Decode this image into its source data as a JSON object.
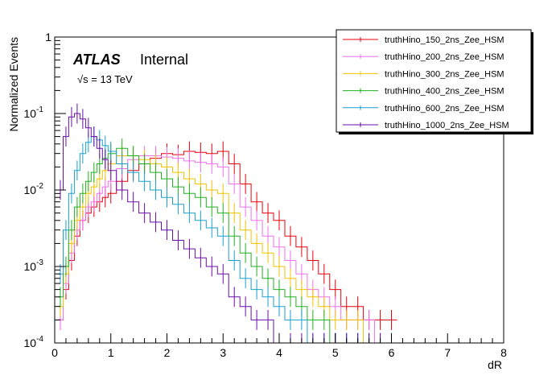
{
  "chart_data": {
    "type": "line",
    "style": "step histogram with error bars",
    "title": "",
    "xlabel": "dR",
    "ylabel": "Normalized Events",
    "xlim": [
      0,
      8
    ],
    "ylim": [
      0.0001,
      1
    ],
    "yscale": "log",
    "x_ticks": [
      "0",
      "1",
      "2",
      "3",
      "4",
      "5",
      "6",
      "7",
      "8"
    ],
    "y_ticks": [
      "10^-4",
      "10^-3",
      "10^-2",
      "10^-1",
      "1"
    ],
    "legend_position": "top-right",
    "annotations": {
      "experiment": "ATLAS",
      "status": "Internal",
      "energy": "√s = 13 TeV"
    },
    "x": [
      0.1,
      0.2,
      0.3,
      0.4,
      0.5,
      0.6,
      0.7,
      0.8,
      0.9,
      1.0,
      1.2,
      1.4,
      1.6,
      1.8,
      2.0,
      2.2,
      2.4,
      2.6,
      2.8,
      3.0,
      3.2,
      3.4,
      3.6,
      3.8,
      4.0,
      4.2,
      4.4,
      4.6,
      4.8,
      5.0,
      5.2,
      5.4,
      5.6,
      5.8,
      6.0
    ],
    "series": [
      {
        "name": "truthHino_150_2ns_Zee_HSM",
        "color": "#e8000b",
        "values": [
          0.0002,
          0.0005,
          0.0012,
          0.0025,
          0.004,
          0.005,
          0.006,
          0.007,
          0.008,
          0.009,
          0.013,
          0.018,
          0.022,
          0.026,
          0.03,
          0.029,
          0.032,
          0.031,
          0.03,
          0.032,
          0.022,
          0.012,
          0.007,
          0.005,
          0.004,
          0.0025,
          0.0018,
          0.0012,
          0.0008,
          0.0005,
          0.0003,
          0.0003,
          0.0002,
          0.0002,
          0.0002
        ]
      },
      {
        "name": "truthHino_200_2ns_Zee_HSM",
        "color": "#f070f0",
        "values": [
          0.0002,
          0.0006,
          0.0015,
          0.003,
          0.004,
          0.006,
          0.007,
          0.009,
          0.011,
          0.013,
          0.019,
          0.025,
          0.028,
          0.028,
          0.027,
          0.026,
          0.024,
          0.023,
          0.022,
          0.02,
          0.012,
          0.006,
          0.004,
          0.0025,
          0.0018,
          0.0012,
          0.0008,
          0.0005,
          0.0004,
          0.0003,
          0.0002,
          0.0002,
          0.0002,
          0.0001,
          0.0001
        ]
      },
      {
        "name": "truthHino_300_2ns_Zee_HSM",
        "color": "#f2c200",
        "values": [
          0.0003,
          0.0008,
          0.002,
          0.004,
          0.006,
          0.009,
          0.011,
          0.014,
          0.018,
          0.022,
          0.028,
          0.028,
          0.025,
          0.022,
          0.02,
          0.017,
          0.014,
          0.012,
          0.01,
          0.009,
          0.005,
          0.003,
          0.002,
          0.0015,
          0.001,
          0.0007,
          0.0005,
          0.0004,
          0.0003,
          0.0002,
          0.0002,
          0.0002,
          0.0001,
          0.0001,
          0.0001
        ]
      },
      {
        "name": "truthHino_400_2ns_Zee_HSM",
        "color": "#20b020",
        "values": [
          0.0004,
          0.001,
          0.003,
          0.006,
          0.009,
          0.013,
          0.017,
          0.022,
          0.026,
          0.03,
          0.035,
          0.028,
          0.022,
          0.017,
          0.014,
          0.011,
          0.009,
          0.008,
          0.006,
          0.005,
          0.0025,
          0.0015,
          0.001,
          0.0007,
          0.0005,
          0.0004,
          0.0003,
          0.0002,
          0.0002,
          0.0001,
          0.0001,
          0.0001,
          0.0001,
          0.0001,
          0.0001
        ]
      },
      {
        "name": "truthHino_600_2ns_Zee_HSM",
        "color": "#1aa0d0",
        "values": [
          0.0008,
          0.003,
          0.009,
          0.018,
          0.03,
          0.042,
          0.05,
          0.045,
          0.038,
          0.032,
          0.022,
          0.017,
          0.013,
          0.01,
          0.008,
          0.0065,
          0.005,
          0.004,
          0.0032,
          0.0025,
          0.0012,
          0.0007,
          0.0005,
          0.0004,
          0.0003,
          0.0002,
          0.0002,
          0.0001,
          0.0001,
          0.0001,
          0.0001,
          0.0001,
          0.0001,
          0.0001,
          0.0001
        ]
      },
      {
        "name": "truthHino_1000_2ns_Zee_HSM",
        "color": "#6a0dad",
        "values": [
          0.01,
          0.05,
          0.09,
          0.1,
          0.085,
          0.065,
          0.05,
          0.035,
          0.025,
          0.018,
          0.01,
          0.007,
          0.005,
          0.0038,
          0.003,
          0.0022,
          0.0017,
          0.0013,
          0.001,
          0.0008,
          0.0004,
          0.0003,
          0.0002,
          0.0002,
          0.0001,
          0.0001,
          0.0001,
          0.0001,
          0.0001,
          0.0001,
          0.0001,
          0.0001,
          0.0001,
          0.0001,
          0.0001
        ]
      }
    ]
  }
}
